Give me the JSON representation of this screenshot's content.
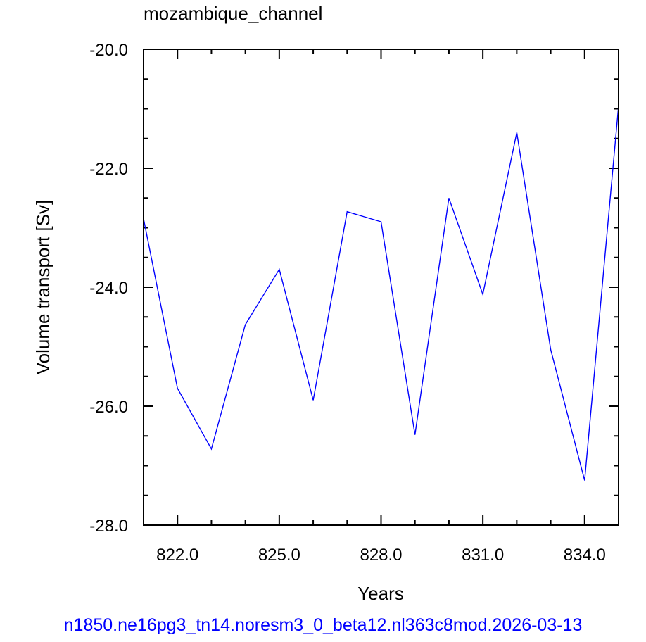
{
  "chart_data": {
    "type": "line",
    "title": "mozambique_channel",
    "xlabel": "Years",
    "ylabel": "Volume transport [Sv]",
    "xlim": [
      821,
      835
    ],
    "ylim": [
      -28.0,
      -20.0
    ],
    "x_ticks": [
      "822.0",
      "825.0",
      "828.0",
      "831.0",
      "834.0"
    ],
    "y_ticks": [
      "-20.0",
      "-22.0",
      "-24.0",
      "-26.0",
      "-28.0"
    ],
    "grid": false,
    "series": [
      {
        "color": "#0000ff",
        "x": [
          821,
          822,
          823,
          824,
          825,
          826,
          827,
          828,
          829,
          830,
          831,
          832,
          833,
          834,
          835
        ],
        "y": [
          -22.85,
          -25.7,
          -26.72,
          -24.63,
          -23.7,
          -25.9,
          -22.73,
          -22.9,
          -26.48,
          -22.5,
          -24.12,
          -21.4,
          -25.05,
          -27.25,
          -20.95
        ]
      }
    ]
  },
  "footer": {
    "text": "n1850.ne16pg3_tn14.noresm3_0_beta12.nl363c8mod.2026-03-13",
    "color": "#0000ff"
  }
}
